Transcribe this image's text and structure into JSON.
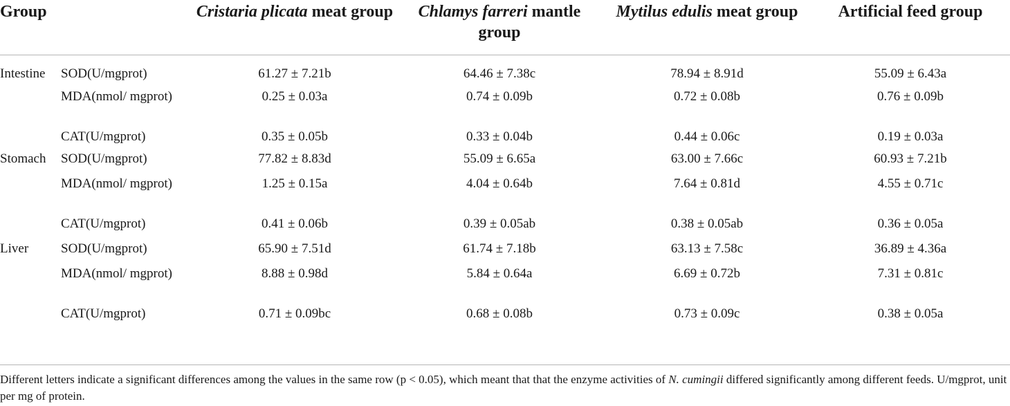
{
  "table": {
    "header": {
      "group": "Group",
      "col1": {
        "italic": "Cristaria plicata",
        "rest": " meat group"
      },
      "col2": {
        "italic": "Chlamys farreri",
        "rest": " mantle group"
      },
      "col3": {
        "italic": "Mytilus edulis",
        "rest": " meat group"
      },
      "col4": {
        "italic": "",
        "rest": "Artificial feed group"
      }
    },
    "rows": [
      {
        "organ": "Intestine",
        "metric": "SOD(U/mgprot)",
        "v": [
          "61.27 ± 7.21b",
          "64.46 ± 7.38c",
          "78.94 ± 8.91d",
          "55.09 ± 6.43a"
        ]
      },
      {
        "organ": "",
        "metric": "MDA(nmol/ mgprot)",
        "v": [
          "0.25 ± 0.03a",
          "0.74 ± 0.09b",
          "0.72 ± 0.08b",
          "0.76 ± 0.09b"
        ]
      },
      {
        "organ": "",
        "metric": "CAT(U/mgprot)",
        "v": [
          "0.35 ± 0.05b",
          "0.33 ± 0.04b",
          "0.44 ± 0.06c",
          "0.19 ± 0.03a"
        ]
      },
      {
        "organ": "Stomach",
        "metric": "SOD(U/mgprot)",
        "v": [
          "77.82 ± 8.83d",
          "55.09 ± 6.65a",
          "63.00 ± 7.66c",
          "60.93 ± 7.21b"
        ]
      },
      {
        "organ": "",
        "metric": "MDA(nmol/ mgprot)",
        "v": [
          "1.25 ± 0.15a",
          "4.04 ± 0.64b",
          "7.64 ± 0.81d",
          "4.55 ± 0.71c"
        ]
      },
      {
        "organ": "",
        "metric": "CAT(U/mgprot)",
        "v": [
          "0.41 ± 0.06b",
          "0.39 ± 0.05ab",
          "0.38 ± 0.05ab",
          "0.36 ± 0.05a"
        ]
      },
      {
        "organ": "Liver",
        "metric": "SOD(U/mgprot)",
        "v": [
          "65.90 ± 7.51d",
          "61.74 ± 7.18b",
          "63.13 ± 7.58c",
          "36.89 ± 4.36a"
        ]
      },
      {
        "organ": "",
        "metric": "MDA(nmol/ mgprot)",
        "v": [
          "8.88 ± 0.98d",
          "5.84 ± 0.64a",
          "6.69 ± 0.72b",
          "7.31 ± 0.81c"
        ]
      },
      {
        "organ": "",
        "metric": "CAT(U/mgprot)",
        "v": [
          "0.71 ± 0.09bc",
          "0.68 ± 0.08b",
          "0.73 ± 0.09c",
          "0.38 ± 0.05a"
        ]
      }
    ]
  },
  "footnote": {
    "part1": "Different letters indicate a significant differences among the values in the same row (p < 0.05), which meant that that the enzyme activities of ",
    "italic": "N. cumingii",
    "part2": " differed significantly among different feeds. U/mgprot, unit per mg of protein."
  }
}
